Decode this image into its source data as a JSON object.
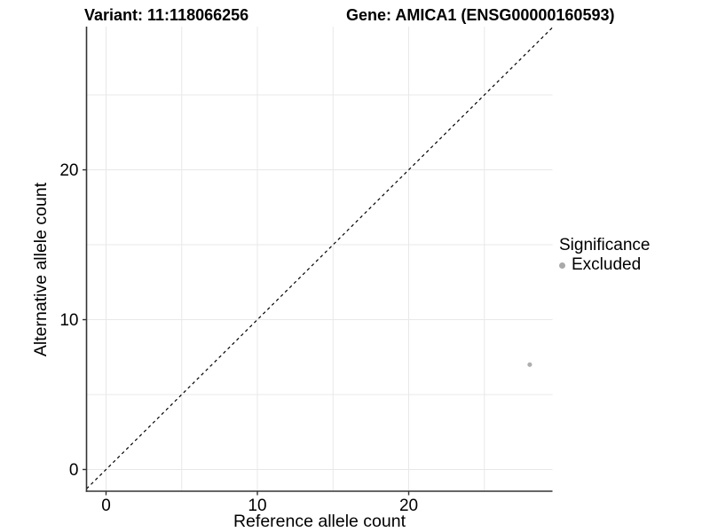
{
  "chart_data": {
    "type": "scatter",
    "title_left": "Variant: 11:118066256",
    "title_right": "Gene: AMICA1 (ENSG00000160593)",
    "xlabel": "Reference allele count",
    "ylabel": "Alternative allele count",
    "xlim": [
      -1.29,
      29.5
    ],
    "ylim": [
      -1.45,
      29.56
    ],
    "xticks": [
      0,
      10,
      20
    ],
    "yticks": [
      0,
      10,
      20
    ],
    "grid": true,
    "grid_interval": 5,
    "points": [
      {
        "x": 28,
        "y": 7,
        "series": "Excluded"
      }
    ],
    "reference_line": {
      "kind": "identity",
      "slope": 1,
      "intercept": 0,
      "style": "dashed"
    },
    "legend": {
      "title": "Significance",
      "position": "right",
      "items": [
        {
          "label": "Excluded",
          "marker": "circle",
          "color": "#a9a9a9"
        }
      ]
    },
    "colors": {
      "point": "#aeaeae",
      "grid": "#e8e8e8",
      "axis": "#333333",
      "reference_line": "#000000",
      "text": "#000000"
    }
  }
}
